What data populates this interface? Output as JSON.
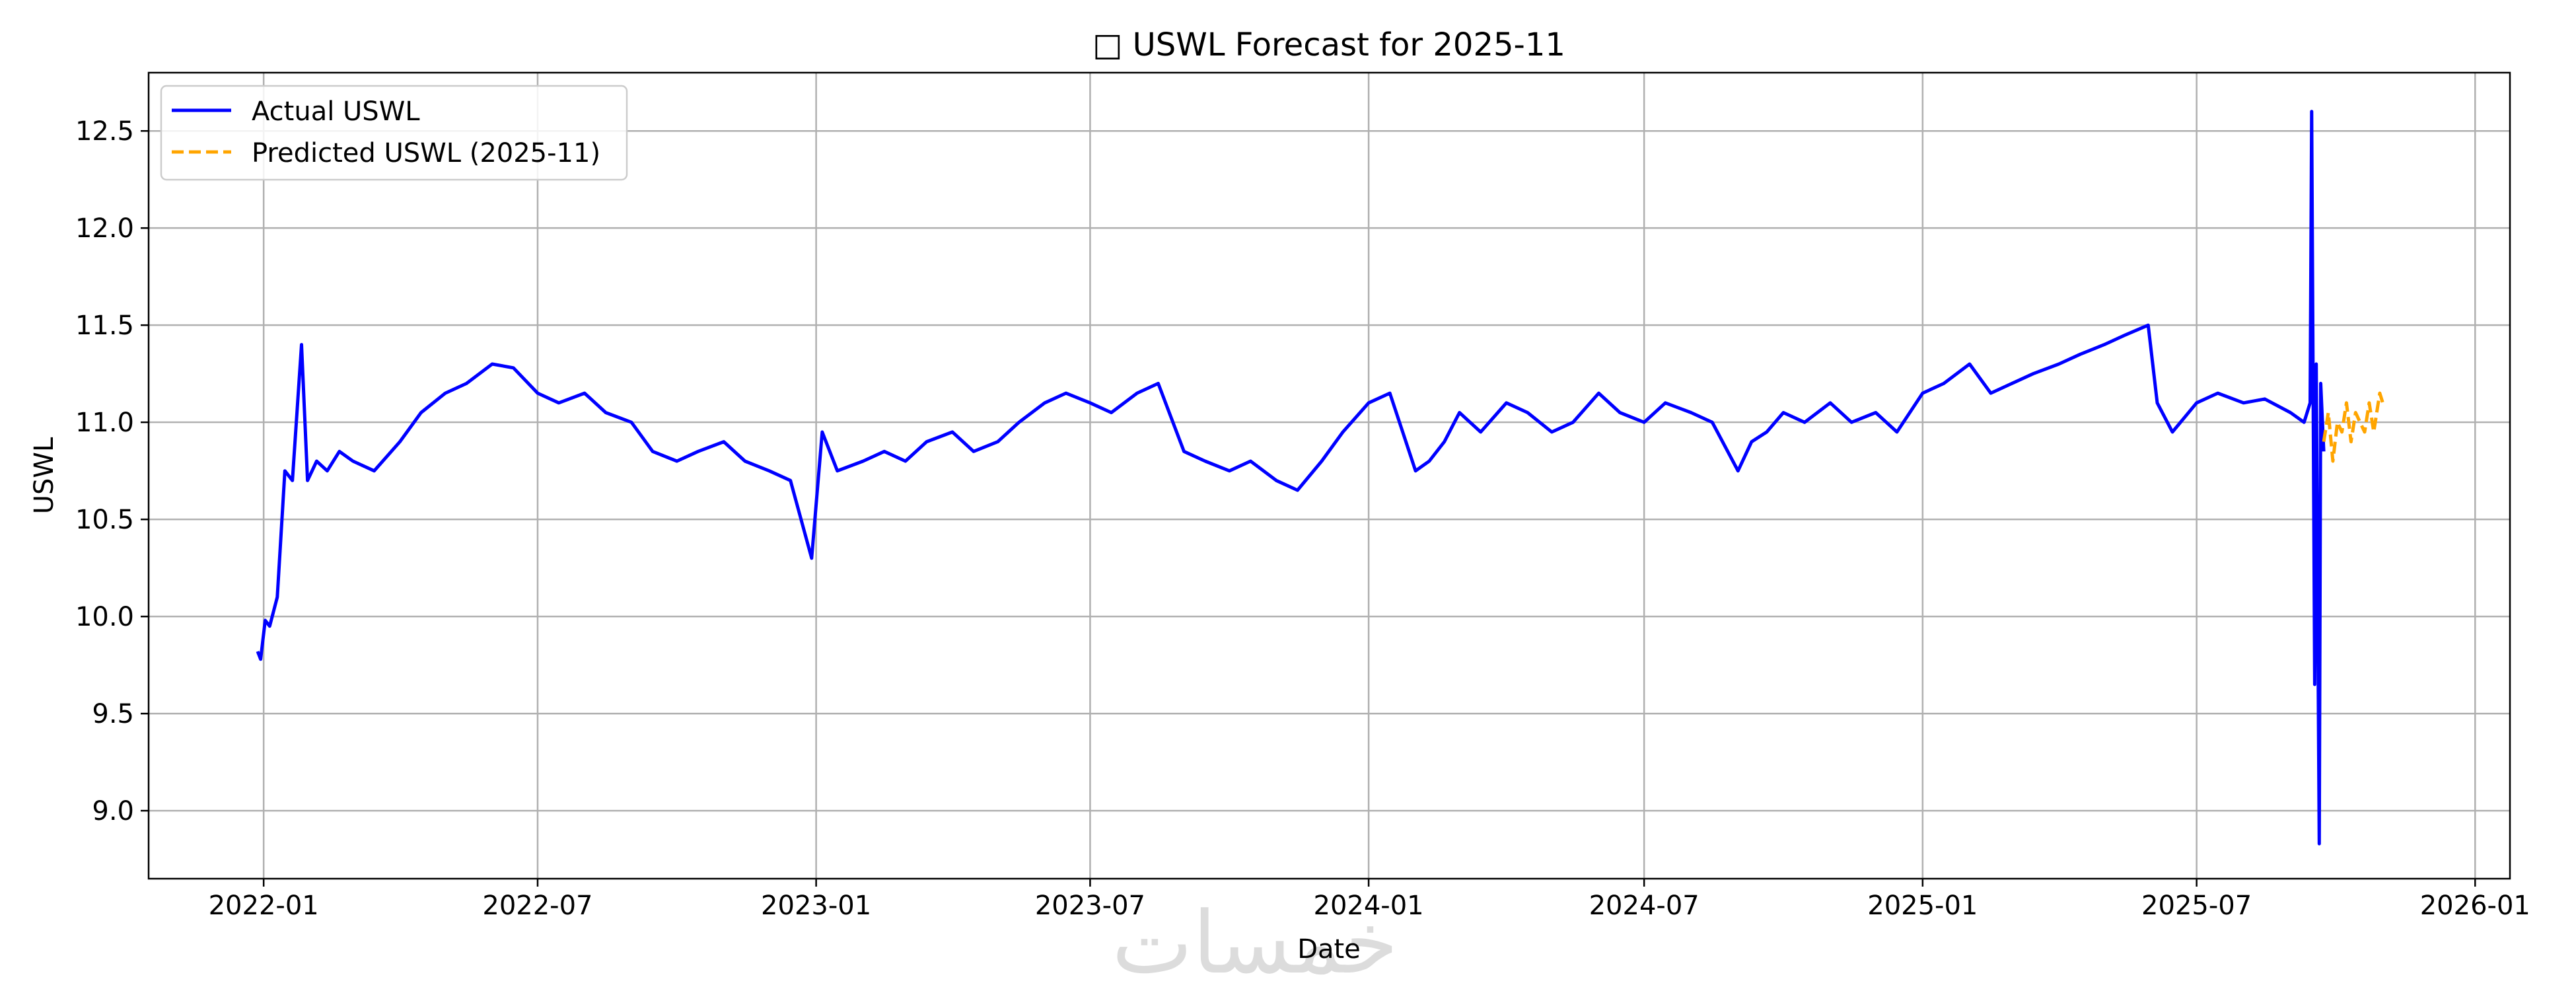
{
  "chart_data": {
    "type": "line",
    "title": "□ USWL Forecast for 2025-11",
    "xlabel": "Date",
    "ylabel": "USWL",
    "xlim": [
      "2021-10-17",
      "2026-01-24"
    ],
    "ylim": [
      8.65,
      12.8
    ],
    "x_ticks": [
      "2022-01",
      "2022-07",
      "2023-01",
      "2023-07",
      "2024-01",
      "2024-07",
      "2025-01",
      "2025-07",
      "2026-01"
    ],
    "y_ticks": [
      "9.0",
      "9.5",
      "10.0",
      "10.5",
      "11.0",
      "11.5",
      "12.0",
      "12.5"
    ],
    "grid": true,
    "legend_position": "top-left",
    "series": [
      {
        "name": "Actual USWL",
        "color": "#0000ff",
        "style": "solid",
        "x": [
          "2021-12-28",
          "2021-12-30",
          "2022-01-02",
          "2022-01-05",
          "2022-01-10",
          "2022-01-15",
          "2022-01-20",
          "2022-01-26",
          "2022-01-30",
          "2022-02-05",
          "2022-02-12",
          "2022-02-20",
          "2022-03-01",
          "2022-03-15",
          "2022-04-01",
          "2022-04-15",
          "2022-05-01",
          "2022-05-15",
          "2022-06-01",
          "2022-06-15",
          "2022-07-01",
          "2022-07-15",
          "2022-08-01",
          "2022-08-15",
          "2022-09-01",
          "2022-09-15",
          "2022-10-01",
          "2022-10-15",
          "2022-11-01",
          "2022-11-15",
          "2022-12-01",
          "2022-12-15",
          "2022-12-29",
          "2023-01-05",
          "2023-01-15",
          "2023-02-01",
          "2023-02-15",
          "2023-03-01",
          "2023-03-15",
          "2023-04-01",
          "2023-04-15",
          "2023-05-01",
          "2023-05-15",
          "2023-06-01",
          "2023-06-15",
          "2023-07-01",
          "2023-07-15",
          "2023-08-01",
          "2023-08-15",
          "2023-09-01",
          "2023-09-15",
          "2023-10-01",
          "2023-10-15",
          "2023-11-01",
          "2023-11-15",
          "2023-12-01",
          "2023-12-15",
          "2024-01-01",
          "2024-01-15",
          "2024-02-01",
          "2024-02-10",
          "2024-02-20",
          "2024-03-01",
          "2024-03-15",
          "2024-04-01",
          "2024-04-15",
          "2024-05-01",
          "2024-05-15",
          "2024-06-01",
          "2024-06-15",
          "2024-07-01",
          "2024-07-15",
          "2024-08-01",
          "2024-08-15",
          "2024-09-01",
          "2024-09-10",
          "2024-09-20",
          "2024-10-01",
          "2024-10-15",
          "2024-11-01",
          "2024-11-15",
          "2024-12-01",
          "2024-12-15",
          "2025-01-01",
          "2025-01-15",
          "2025-02-01",
          "2025-02-15",
          "2025-03-01",
          "2025-03-15",
          "2025-04-01",
          "2025-04-15",
          "2025-05-01",
          "2025-05-15",
          "2025-05-30",
          "2025-06-05",
          "2025-06-15",
          "2025-07-01",
          "2025-07-15",
          "2025-08-01",
          "2025-08-15",
          "2025-09-01",
          "2025-09-10",
          "2025-09-14",
          "2025-09-15",
          "2025-09-17",
          "2025-09-18",
          "2025-09-20",
          "2025-09-21",
          "2025-09-23"
        ],
        "y": [
          9.82,
          9.78,
          9.98,
          9.95,
          10.1,
          10.75,
          10.7,
          11.4,
          10.7,
          10.8,
          10.75,
          10.85,
          10.8,
          10.75,
          10.9,
          11.05,
          11.15,
          11.2,
          11.3,
          11.28,
          11.15,
          11.1,
          11.15,
          11.05,
          11.0,
          10.85,
          10.8,
          10.85,
          10.9,
          10.8,
          10.75,
          10.7,
          10.3,
          10.95,
          10.75,
          10.8,
          10.85,
          10.8,
          10.9,
          10.95,
          10.85,
          10.9,
          11.0,
          11.1,
          11.15,
          11.1,
          11.05,
          11.15,
          11.2,
          10.85,
          10.8,
          10.75,
          10.8,
          10.7,
          10.65,
          10.8,
          10.95,
          11.1,
          11.15,
          10.75,
          10.8,
          10.9,
          11.05,
          10.95,
          11.1,
          11.05,
          10.95,
          11.0,
          11.15,
          11.05,
          11.0,
          11.1,
          11.05,
          11.0,
          10.75,
          10.9,
          10.95,
          11.05,
          11.0,
          11.1,
          11.0,
          11.05,
          10.95,
          11.15,
          11.2,
          11.3,
          11.15,
          11.2,
          11.25,
          11.3,
          11.35,
          11.4,
          11.45,
          11.5,
          11.1,
          10.95,
          11.1,
          11.15,
          11.1,
          11.12,
          11.05,
          11.0,
          11.1,
          12.6,
          9.65,
          11.3,
          8.83,
          11.2,
          10.85
        ]
      },
      {
        "name": "Predicted USWL (2025-11)",
        "color": "#ffa500",
        "style": "dashed",
        "x": [
          "2025-09-23",
          "2025-09-26",
          "2025-09-29",
          "2025-10-02",
          "2025-10-05",
          "2025-10-08",
          "2025-10-11",
          "2025-10-14",
          "2025-10-17",
          "2025-10-20",
          "2025-10-23",
          "2025-10-26",
          "2025-10-28",
          "2025-10-30",
          "2025-11-01"
        ],
        "y": [
          10.9,
          11.05,
          10.8,
          11.0,
          10.95,
          11.1,
          10.9,
          11.05,
          11.0,
          10.95,
          11.1,
          10.95,
          11.05,
          11.15,
          11.1
        ]
      }
    ]
  },
  "watermark": {
    "text": "خمسات",
    "color": "#dcdcdc"
  }
}
